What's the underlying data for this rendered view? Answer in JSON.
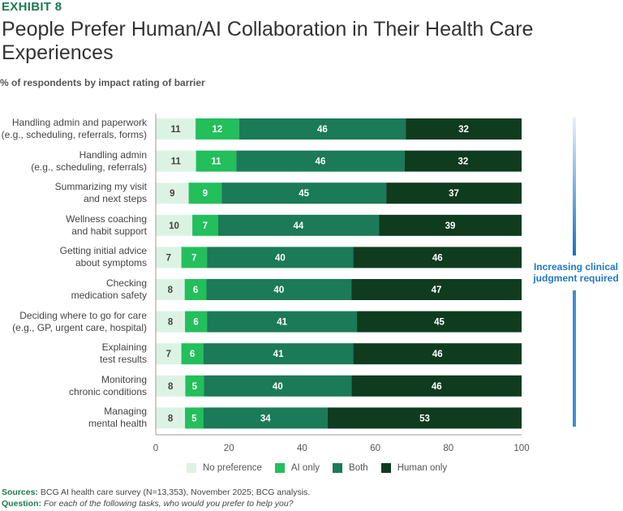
{
  "exhibit": "EXHIBIT 8",
  "title": "People Prefer Human/AI Collaboration in Their Health Care Experiences",
  "chart_data": {
    "type": "bar",
    "orientation": "horizontal",
    "stacked": true,
    "subtitle": "% of respondents by impact rating of barrier",
    "categories": [
      "Handling admin and paperwork\n(e.g., scheduling, referrals, forms)",
      "Handling admin\n(e.g., scheduling, referrals)",
      "Summarizing my visit\nand next steps",
      "Wellness coaching\nand habit support",
      "Getting initial advice\nabout symptoms",
      "Checking\nmedication safety",
      "Deciding where to go for care\n(e.g., GP, urgent care, hospital)",
      "Explaining\ntest results",
      "Monitoring\nchronic conditions",
      "Managing\nmental health"
    ],
    "series": [
      {
        "name": "No preference",
        "color": "#dcf3e3",
        "label_color": "#444444",
        "values": [
          11,
          11,
          9,
          10,
          7,
          8,
          8,
          7,
          8,
          8
        ]
      },
      {
        "name": "AI only",
        "color": "#22bf5b",
        "label_color": "#ffffff",
        "values": [
          12,
          11,
          9,
          7,
          7,
          6,
          6,
          6,
          5,
          5
        ]
      },
      {
        "name": "Both",
        "color": "#1b7a57",
        "label_color": "#ffffff",
        "values": [
          46,
          46,
          45,
          44,
          40,
          40,
          41,
          41,
          40,
          34
        ]
      },
      {
        "name": "Human only",
        "color": "#0f3c1f",
        "label_color": "#ffffff",
        "values": [
          32,
          32,
          37,
          39,
          46,
          47,
          45,
          46,
          46,
          53
        ]
      }
    ],
    "xlim": [
      0,
      100
    ],
    "xticks": [
      0,
      20,
      40,
      60,
      80,
      100
    ],
    "legend_position": "bottom",
    "annotation": "Increasing clinical judgment required"
  },
  "sources_label": "Sources:",
  "sources_text": " BCG AI health care survey (N=13,353), November 2025; BCG analysis.",
  "question_label": "Question:",
  "question_text": " For each of the following tasks, who would you prefer to help you?"
}
